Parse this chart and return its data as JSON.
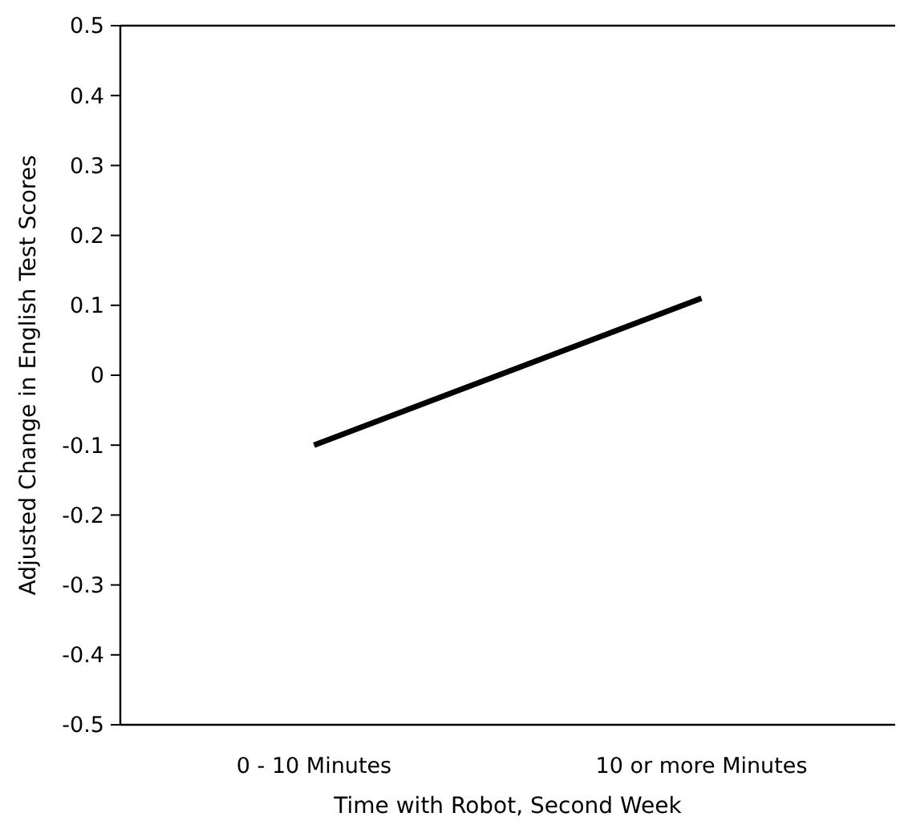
{
  "chart_data": {
    "type": "line",
    "xlabel": "Time with Robot, Second Week",
    "ylabel": "Adjusted Change in English Test Scores",
    "categories": [
      "0 - 10 Minutes",
      "10 or more Minutes"
    ],
    "series": [
      {
        "color": "#000000",
        "values": [
          -0.1,
          0.11
        ]
      }
    ],
    "ylim": [
      -0.5,
      0.5
    ],
    "yticks": [
      -0.5,
      -0.4,
      -0.3,
      -0.2,
      -0.1,
      0,
      0.1,
      0.2,
      0.3,
      0.4,
      0.5
    ],
    "grid": false,
    "line_style": "solid"
  }
}
